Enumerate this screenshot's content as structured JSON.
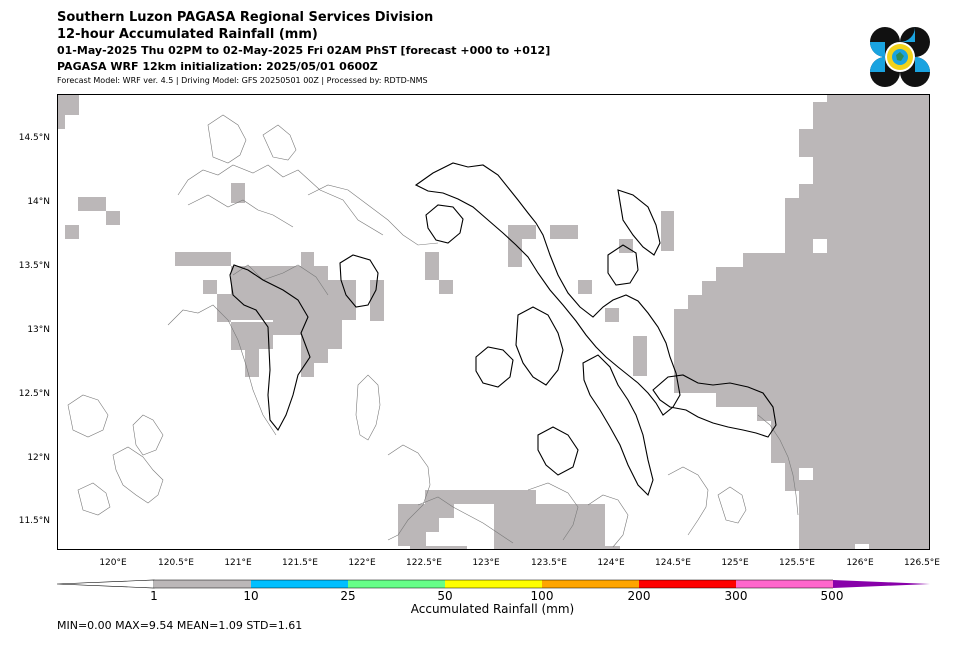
{
  "header": {
    "line1": "Southern Luzon PAGASA Regional Services Division",
    "line2": "12-hour Accumulated Rainfall (mm)",
    "line3": "01-May-2025 Thu 02PM to 02-May-2025 Fri 02AM PhST [forecast +000 to +012]",
    "line4": "PAGASA WRF 12km initialization: 2025/05/01 0600Z",
    "line5": "Forecast Model: WRF ver. 4.5 | Driving Model: GFS 20250501 00Z | Processed by: RDTD-NMS"
  },
  "logo": {
    "icon": "pagasa-logo-icon",
    "colors": [
      "#111111",
      "#1aa3e0",
      "#f2d21b"
    ]
  },
  "map": {
    "lat_labels": [
      "14.5°N",
      "14°N",
      "13.5°N",
      "13°N",
      "12.5°N",
      "12°N",
      "11.5°N"
    ],
    "lon_labels": [
      "120°E",
      "120.5°E",
      "121°E",
      "121.5°E",
      "122°E",
      "122.5°E",
      "123°E",
      "123.5°E",
      "124°E",
      "124.5°E",
      "125°E",
      "125.5°E",
      "126°E",
      "126.5°E"
    ],
    "rain_fill_color": "#bbb7b8"
  },
  "colorbar": {
    "title": "Accumulated Rainfall (mm)",
    "ticks": [
      "1",
      "10",
      "25",
      "50",
      "100",
      "200",
      "300",
      "500"
    ],
    "colors": [
      "#ffffff",
      "#bbb7b8",
      "#00bfff",
      "#66ff88",
      "#ffff00",
      "#ffa500",
      "#ff0000",
      "#ff66cc",
      "#8800aa"
    ]
  },
  "stats": {
    "text": "MIN=0.00   MAX=9.54   MEAN=1.09   STD=1.61"
  }
}
